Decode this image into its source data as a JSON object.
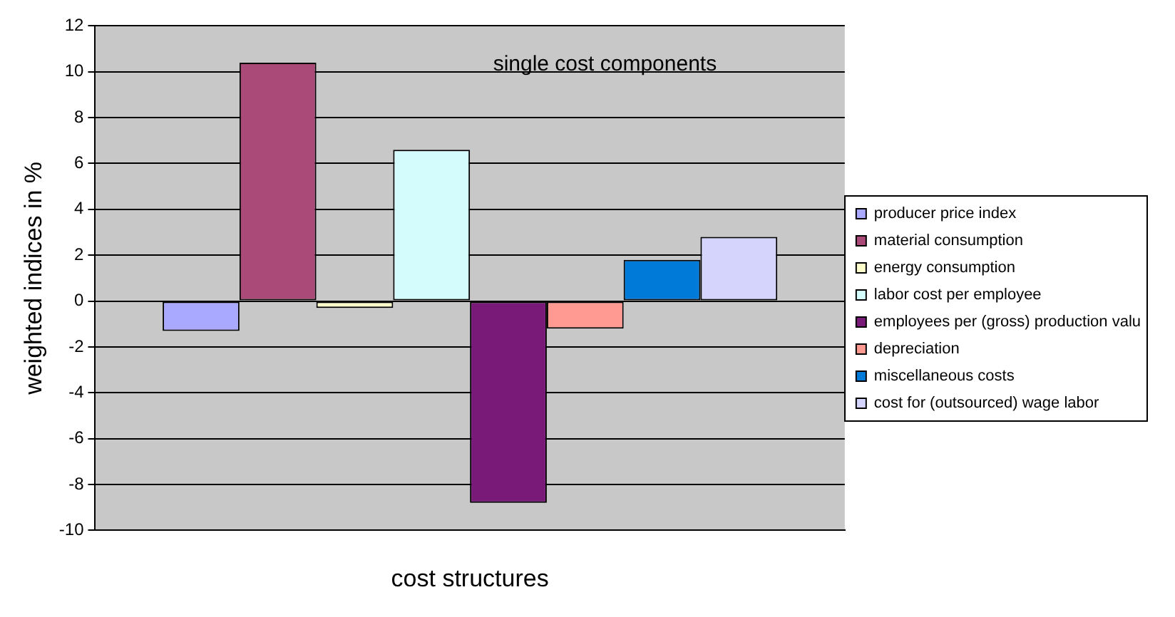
{
  "chart_data": {
    "type": "bar",
    "xlabel": "cost structures",
    "ylabel": "weighted indices in %",
    "annotations": [
      "single cost components"
    ],
    "categories": [
      null
    ],
    "series": [
      {
        "name": "producer price index",
        "color": "#a9a9ff",
        "values": [
          -1.3
        ]
      },
      {
        "name": "material consumption",
        "color": "#a94a78",
        "values": [
          10.4
        ]
      },
      {
        "name": "energy consumption",
        "color": "#ffffcc",
        "values": [
          -0.3
        ]
      },
      {
        "name": "labor cost per employee",
        "color": "#d4fcfc",
        "values": [
          6.6
        ]
      },
      {
        "name": "employees per (gross) production valu",
        "color": "#7a1a78",
        "values": [
          -8.8
        ]
      },
      {
        "name": "depreciation",
        "color": "#ff9a92",
        "values": [
          -1.2
        ]
      },
      {
        "name": "miscellaneous costs",
        "color": "#007ad8",
        "values": [
          1.8
        ]
      },
      {
        "name": "cost for (outsourced) wage labor",
        "color": "#d4d4fc",
        "values": [
          2.8
        ]
      }
    ],
    "ylim": [
      -10,
      12
    ],
    "yticks": [
      -10,
      -8,
      -6,
      -4,
      -2,
      0,
      2,
      4,
      6,
      8,
      10,
      12
    ],
    "grid": "y",
    "legend": "right"
  }
}
